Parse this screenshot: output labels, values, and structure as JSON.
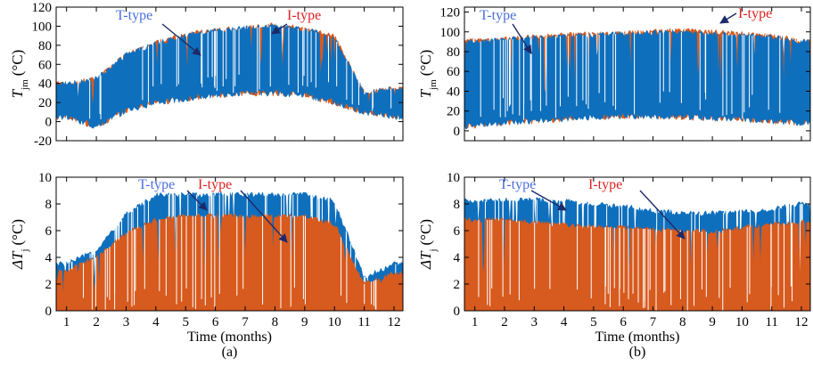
{
  "colors": {
    "t_type": "#0e6fbd",
    "i_type": "#d75a1e",
    "t_label": "#4a6ee0",
    "i_label": "#e02020",
    "arrow": "#1c2a6a"
  },
  "chart_data": [
    {
      "id": "a_top",
      "type": "area",
      "ylabel_main": "T",
      "ylabel_sub": "jm",
      "ylabel_unit": "(°C)",
      "ylim": [
        -20,
        120
      ],
      "yticks": [
        "120",
        "100",
        "80",
        "60",
        "40",
        "20",
        "0",
        "-20"
      ],
      "xlim": [
        0.65,
        12.3
      ],
      "series": [
        {
          "name": "T-type",
          "color": "t_type",
          "x": [
            1,
            2,
            3,
            4,
            5,
            6,
            7,
            8,
            9,
            10,
            11,
            12
          ],
          "upper": [
            40,
            45,
            70,
            82,
            90,
            95,
            98,
            100,
            97,
            88,
            30,
            35
          ],
          "lower": [
            5,
            -5,
            12,
            20,
            24,
            28,
            30,
            30,
            28,
            20,
            10,
            5
          ]
        },
        {
          "name": "I-type",
          "color": "i_type",
          "x": [
            1,
            2,
            3,
            4,
            5,
            6,
            7,
            8,
            9,
            10,
            11,
            12
          ],
          "upper": [
            40,
            45,
            70,
            83,
            91,
            96,
            99,
            101,
            98,
            89,
            30,
            35
          ],
          "lower": [
            5,
            -5,
            12,
            20,
            24,
            28,
            30,
            30,
            28,
            20,
            10,
            5
          ]
        }
      ],
      "annotations": [
        {
          "text": "T-type",
          "color": "t_label"
        },
        {
          "text": "I-type",
          "color": "i_label"
        }
      ]
    },
    {
      "id": "b_top",
      "type": "area",
      "ylabel_main": "T",
      "ylabel_sub": "jm",
      "ylabel_unit": "(°C)",
      "ylim": [
        -10,
        125
      ],
      "yticks": [
        "120",
        "100",
        "80",
        "60",
        "40",
        "20",
        "0"
      ],
      "xlim": [
        0.65,
        12.3
      ],
      "series": [
        {
          "name": "T-type",
          "color": "t_type",
          "x": [
            1,
            2,
            3,
            4,
            5,
            6,
            7,
            8,
            9,
            10,
            11,
            12
          ],
          "upper": [
            90,
            92,
            94,
            96,
            97,
            98,
            99,
            100,
            98,
            97,
            95,
            90
          ],
          "lower": [
            5,
            8,
            10,
            12,
            14,
            15,
            15,
            14,
            13,
            12,
            10,
            8
          ]
        },
        {
          "name": "I-type",
          "color": "i_type",
          "x": [
            1,
            2,
            3,
            4,
            5,
            6,
            7,
            8,
            9,
            10,
            11,
            12
          ],
          "upper": [
            91,
            93,
            95,
            97,
            98,
            99,
            100,
            102,
            100,
            98,
            96,
            91
          ],
          "lower": [
            5,
            8,
            10,
            12,
            14,
            15,
            15,
            14,
            13,
            12,
            10,
            8
          ]
        }
      ],
      "annotations": [
        {
          "text": "T-type",
          "color": "t_label"
        },
        {
          "text": "I-type",
          "color": "i_label"
        }
      ]
    },
    {
      "id": "a_bottom",
      "type": "area",
      "ylabel_main": "ΔT",
      "ylabel_sub": "j",
      "ylabel_unit": "(°C)",
      "ylim": [
        0,
        10
      ],
      "yticks": [
        "10",
        "8",
        "6",
        "4",
        "2",
        "0"
      ],
      "xlim": [
        0.65,
        12.3
      ],
      "xticks": [
        "1",
        "2",
        "3",
        "4",
        "5",
        "6",
        "7",
        "8",
        "9",
        "10",
        "11",
        "12"
      ],
      "xlabel": "Time (months)",
      "caption": "(a)",
      "series": [
        {
          "name": "T-type",
          "color": "t_type",
          "x": [
            1,
            2,
            3,
            4,
            5,
            6,
            7,
            8,
            9,
            10,
            11,
            12
          ],
          "upper": [
            3.5,
            4.5,
            7.2,
            8.7,
            8.7,
            8.7,
            8.7,
            8.7,
            8.7,
            8.2,
            2.5,
            3.5
          ]
        },
        {
          "name": "I-type",
          "color": "i_type",
          "x": [
            1,
            2,
            3,
            4,
            5,
            6,
            7,
            8,
            9,
            10,
            11,
            12
          ],
          "upper": [
            3.0,
            4.0,
            5.8,
            6.8,
            7.1,
            7.1,
            7.1,
            7.1,
            7.1,
            6.5,
            2.0,
            2.8
          ]
        }
      ],
      "annotations": [
        {
          "text": "T-type",
          "color": "t_label"
        },
        {
          "text": "I-type",
          "color": "i_label"
        }
      ]
    },
    {
      "id": "b_bottom",
      "type": "area",
      "ylabel_main": "ΔT",
      "ylabel_sub": "j",
      "ylabel_unit": "(°C)",
      "ylim": [
        0,
        10
      ],
      "yticks": [
        "10",
        "8",
        "6",
        "4",
        "2",
        "0"
      ],
      "xlim": [
        0.65,
        12.3
      ],
      "xticks": [
        "1",
        "2",
        "3",
        "4",
        "5",
        "6",
        "7",
        "8",
        "9",
        "10",
        "11",
        "12"
      ],
      "xlabel": "Time (months)",
      "caption": "(b)",
      "series": [
        {
          "name": "T-type",
          "color": "t_type",
          "x": [
            1,
            2,
            3,
            4,
            5,
            6,
            7,
            8,
            9,
            10,
            11,
            12
          ],
          "upper": [
            8.2,
            8.3,
            8.3,
            8.2,
            8.0,
            7.8,
            7.5,
            7.3,
            7.3,
            7.4,
            7.6,
            8.0
          ]
        },
        {
          "name": "I-type",
          "color": "i_type",
          "x": [
            1,
            2,
            3,
            4,
            5,
            6,
            7,
            8,
            9,
            10,
            11,
            12
          ],
          "upper": [
            6.8,
            6.8,
            6.6,
            6.4,
            6.3,
            6.2,
            6.1,
            6.0,
            5.9,
            6.2,
            6.5,
            6.6
          ]
        }
      ],
      "annotations": [
        {
          "text": "T-type",
          "color": "t_label"
        },
        {
          "text": "I-type",
          "color": "i_label"
        }
      ]
    }
  ]
}
